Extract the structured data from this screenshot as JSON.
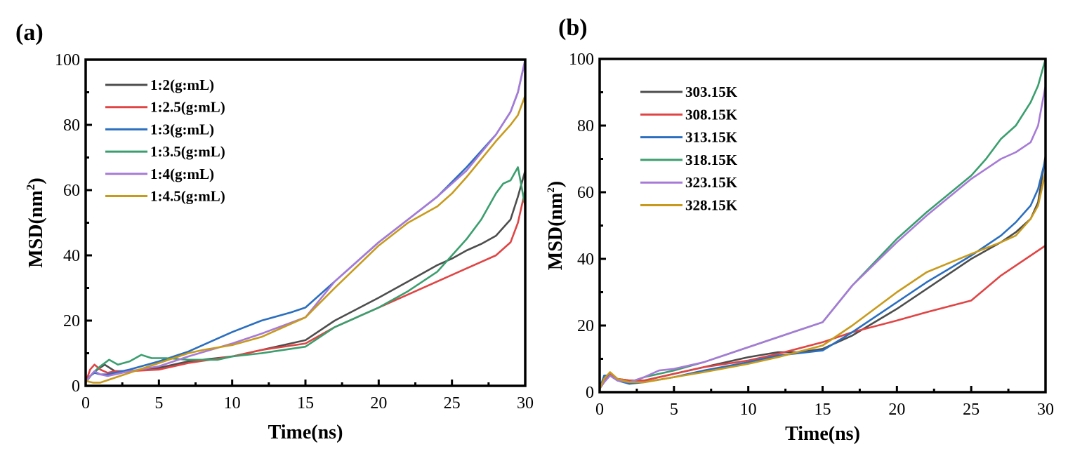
{
  "chart_data": [
    {
      "type": "line",
      "panel_label": "(a)",
      "title": "",
      "xlabel": "Time(ns)",
      "ylabel": "MSD(nm",
      "ylabel_sup": "2",
      "ylabel_close": ")",
      "xlim": [
        0,
        30
      ],
      "ylim": [
        0,
        100
      ],
      "xticks": [
        0,
        5,
        10,
        15,
        20,
        25,
        30
      ],
      "yticks": [
        0,
        20,
        40,
        60,
        80,
        100
      ],
      "legend_position": "top-left",
      "grid": false,
      "series": [
        {
          "name": "1:2(g:mL)",
          "color": "#4d4d4d",
          "x": [
            0,
            0.3,
            0.8,
            1.3,
            2,
            3,
            5,
            7,
            10,
            12,
            15,
            17,
            20,
            22,
            24,
            25,
            26,
            27,
            28,
            29,
            29.5,
            30
          ],
          "y": [
            1,
            3,
            5,
            6.5,
            4.5,
            4.5,
            5.5,
            7.5,
            9,
            11,
            14,
            20,
            27,
            32,
            37,
            39,
            41.5,
            43.5,
            46,
            51,
            58,
            66
          ]
        },
        {
          "name": "1:2.5(g:mL)",
          "color": "#e04444",
          "x": [
            0,
            0.3,
            0.6,
            1,
            1.5,
            2,
            3,
            5,
            7,
            10,
            12,
            15,
            17,
            20,
            22,
            24,
            26,
            27,
            28,
            29,
            29.5,
            30
          ],
          "y": [
            1,
            5,
            6.5,
            5,
            4,
            4.5,
            4.5,
            5,
            7,
            9,
            11,
            13,
            18,
            24,
            28,
            32,
            36,
            38,
            40,
            44,
            50,
            60
          ]
        },
        {
          "name": "1:3(g:mL)",
          "color": "#2a6ebf",
          "x": [
            0,
            0.3,
            0.6,
            1,
            1.5,
            2,
            3,
            5,
            7,
            9,
            10,
            12,
            14,
            15,
            17,
            20,
            22,
            24,
            26,
            28,
            29,
            29.5,
            30
          ],
          "y": [
            1,
            3,
            4,
            3.5,
            3.5,
            4,
            5,
            7.5,
            10.5,
            14.5,
            16.5,
            20,
            22.5,
            24,
            32,
            44,
            51,
            58,
            67,
            77,
            84,
            90,
            100
          ]
        },
        {
          "name": "1:3.5(g:mL)",
          "color": "#3a9e6e",
          "x": [
            0,
            0.5,
            1,
            1.6,
            2.2,
            3,
            3.8,
            4.5,
            5.5,
            7,
            9,
            10,
            12,
            15,
            17,
            20,
            22,
            24,
            25,
            26,
            27,
            28,
            28.5,
            29,
            29.5,
            30
          ],
          "y": [
            1,
            4,
            6,
            8,
            6.5,
            7.5,
            9.5,
            8.5,
            8.5,
            8,
            8,
            9,
            10,
            12,
            18,
            24,
            29,
            35,
            40,
            45,
            51,
            59,
            62,
            63,
            67,
            55
          ]
        },
        {
          "name": "1:4(g:mL)",
          "color": "#a67ad6",
          "x": [
            0,
            0.3,
            0.6,
            1,
            1.5,
            2,
            3,
            5,
            7,
            10,
            12,
            15,
            17,
            20,
            22,
            24,
            26,
            28,
            29,
            29.5,
            30
          ],
          "y": [
            1,
            3,
            4.5,
            3.5,
            3,
            3.5,
            4.5,
            6,
            9,
            13,
            16,
            21,
            32,
            44,
            51,
            58,
            66,
            77,
            84,
            90,
            100
          ]
        },
        {
          "name": "1:4.5(g:mL)",
          "color": "#c89a1c",
          "x": [
            0,
            0.5,
            1,
            2,
            3,
            5,
            7,
            8,
            10,
            12,
            15,
            17,
            20,
            22,
            24,
            25,
            26,
            28,
            29,
            29.5,
            30
          ],
          "y": [
            1.5,
            1,
            1,
            2.5,
            4,
            7,
            10,
            11,
            12.5,
            15,
            21,
            30,
            43,
            50,
            55,
            59,
            64,
            75,
            80,
            83,
            89
          ]
        }
      ]
    },
    {
      "type": "line",
      "panel_label": "(b)",
      "title": "",
      "xlabel": "Time(ns)",
      "ylabel": "MSD(nm",
      "ylabel_sup": "2",
      "ylabel_close": ")",
      "xlim": [
        0,
        30
      ],
      "ylim": [
        0,
        100
      ],
      "xticks": [
        0,
        5,
        10,
        15,
        20,
        25,
        30
      ],
      "yticks": [
        0,
        20,
        40,
        60,
        80,
        100
      ],
      "legend_position": "top-left",
      "grid": false,
      "series": [
        {
          "name": "303.15K",
          "color": "#4d4d4d",
          "x": [
            0,
            0.3,
            0.7,
            1.2,
            2,
            3,
            5,
            7,
            10,
            12,
            13.5,
            15,
            17,
            20,
            22,
            25,
            27,
            28,
            29,
            29.5,
            30
          ],
          "y": [
            1,
            4,
            5,
            4,
            3.5,
            3.5,
            5.5,
            7.5,
            10.5,
            12,
            12,
            13,
            17,
            25,
            31,
            40,
            45,
            48,
            52,
            57,
            71
          ]
        },
        {
          "name": "308.15K",
          "color": "#e04444",
          "x": [
            0,
            0.3,
            0.7,
            1.2,
            2,
            3,
            5,
            7,
            10,
            12,
            15,
            17,
            20,
            22,
            25,
            27,
            30
          ],
          "y": [
            1,
            3.5,
            5.5,
            4,
            3.5,
            3.5,
            5.5,
            7.5,
            9.5,
            11.5,
            15,
            18,
            21.5,
            24,
            27.5,
            35,
            44
          ]
        },
        {
          "name": "313.15K",
          "color": "#2a6ebf",
          "x": [
            0,
            0.3,
            0.7,
            1.2,
            2,
            3,
            5,
            7,
            10,
            12,
            15,
            17,
            20,
            22,
            25,
            27,
            28,
            29,
            29.5,
            30
          ],
          "y": [
            1,
            5,
            5,
            3.5,
            2.5,
            3,
            4.5,
            6.5,
            9,
            11,
            12.5,
            18,
            27,
            33,
            41,
            47,
            51,
            56,
            61,
            70
          ]
        },
        {
          "name": "318.15K",
          "color": "#3a9e6e",
          "x": [
            0,
            0.3,
            0.7,
            1.2,
            2,
            3,
            5,
            7,
            10,
            12,
            15,
            17,
            20,
            22,
            25,
            26,
            27,
            28,
            29,
            29.5,
            30
          ],
          "y": [
            1,
            3,
            5,
            3.5,
            3,
            4.5,
            6.5,
            9,
            13.5,
            16.5,
            21,
            32,
            46,
            54,
            65,
            70,
            76,
            80,
            87,
            92,
            100
          ]
        },
        {
          "name": "323.15K",
          "color": "#a67ad6",
          "x": [
            0,
            0.3,
            0.7,
            1.2,
            2,
            3,
            4,
            5,
            7,
            10,
            12,
            15,
            17,
            20,
            22,
            25,
            26,
            27,
            28,
            29,
            29.5,
            30
          ],
          "y": [
            1,
            3,
            5,
            3.5,
            3,
            4.5,
            6.5,
            7,
            9,
            13.5,
            16.5,
            21,
            32,
            45,
            53,
            64,
            67,
            70,
            72,
            75,
            80,
            92
          ]
        },
        {
          "name": "328.15K",
          "color": "#c89a1c",
          "x": [
            0,
            0.3,
            0.7,
            1.2,
            2,
            3,
            5,
            7,
            10,
            12,
            15,
            17,
            20,
            22,
            25,
            27,
            28,
            29,
            29.5,
            30
          ],
          "y": [
            1,
            4,
            6,
            4,
            3,
            3,
            4.5,
            6,
            8.5,
            10.5,
            14,
            20,
            30,
            36,
            41.5,
            45,
            47,
            52,
            56,
            66
          ]
        }
      ]
    }
  ]
}
